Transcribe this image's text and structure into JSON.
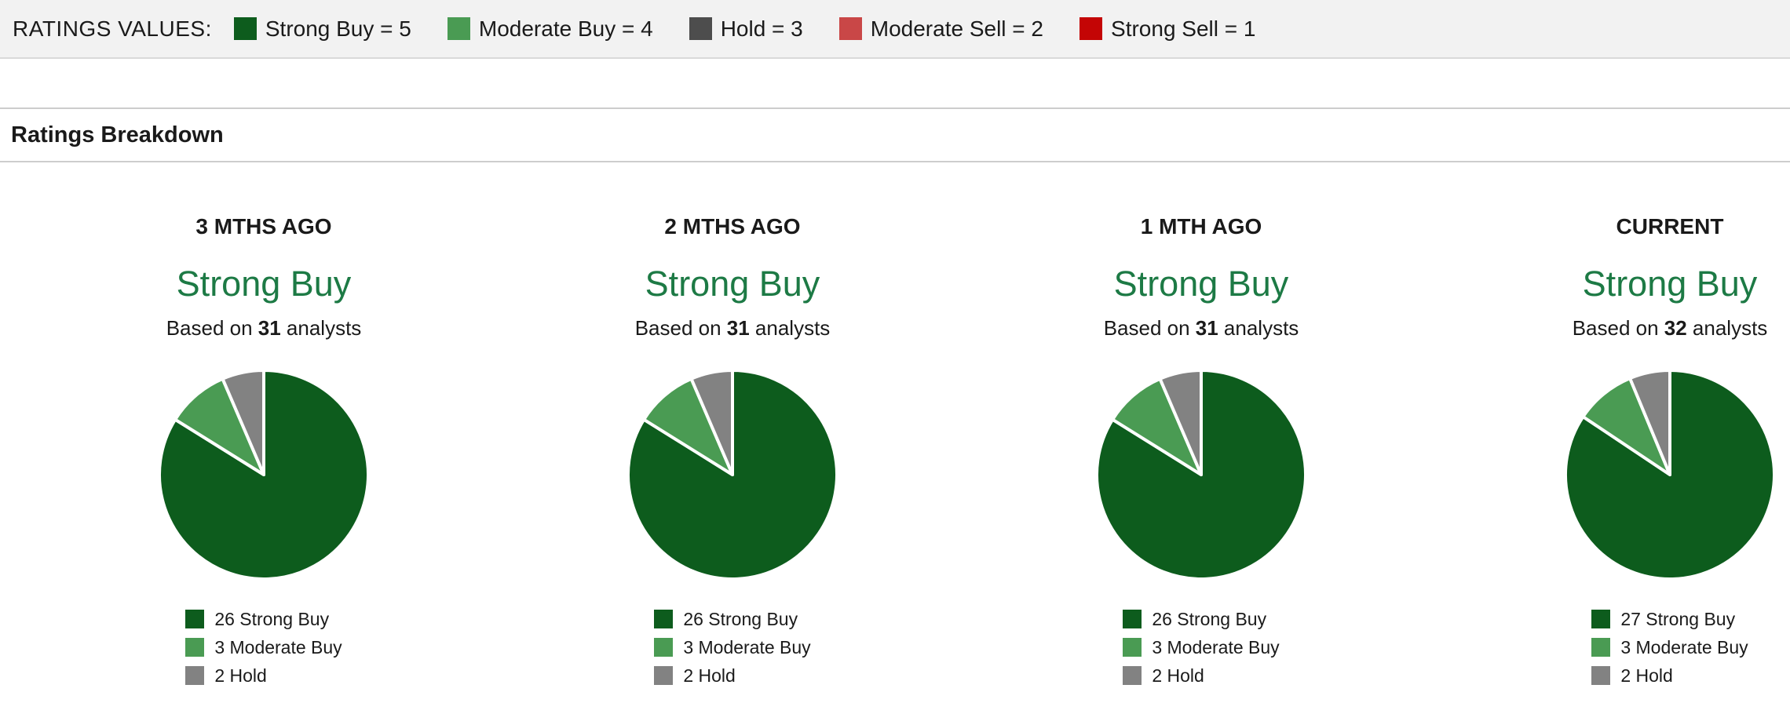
{
  "ratings_values_bar": {
    "label": "RATINGS VALUES:",
    "items": [
      {
        "name": "strong-buy",
        "text": "Strong Buy = 5",
        "color": "#0d5c1d"
      },
      {
        "name": "moderate-buy",
        "text": "Moderate Buy = 4",
        "color": "#4a9b53"
      },
      {
        "name": "hold",
        "text": "Hold = 3",
        "color": "#4d4d4d"
      },
      {
        "name": "moderate-sell",
        "text": "Moderate Sell = 2",
        "color": "#c94747"
      },
      {
        "name": "strong-sell",
        "text": "Strong Sell = 1",
        "color": "#c40505"
      }
    ]
  },
  "section": {
    "title": "Ratings Breakdown"
  },
  "strings": {
    "based_on_prefix": "Based on ",
    "based_on_suffix": " analysts"
  },
  "colors": {
    "strong_buy": "#0d5c1d",
    "moderate_buy": "#4a9b53",
    "hold_pie": "#828282",
    "consensus_text": "#1d7a45",
    "bar_background": "#f2f2f2",
    "divider": "#cdcdcd"
  },
  "chart_data": [
    {
      "type": "pie",
      "title": "3 MTHS AGO",
      "period": "3 MTHS AGO",
      "consensus": "Strong Buy",
      "analyst_count": "31",
      "categories": [
        "Strong Buy",
        "Moderate Buy",
        "Hold"
      ],
      "values": [
        26,
        3,
        2
      ],
      "colors": [
        "#0d5c1d",
        "#4a9b53",
        "#828282"
      ],
      "start_angle_deg": 0,
      "direction": "clockwise",
      "legend_position": "bottom",
      "legend": [
        {
          "text": "26 Strong Buy",
          "color": "#0d5c1d"
        },
        {
          "text": "3 Moderate Buy",
          "color": "#4a9b53"
        },
        {
          "text": "2 Hold",
          "color": "#828282"
        }
      ]
    },
    {
      "type": "pie",
      "title": "2 MTHS AGO",
      "period": "2 MTHS AGO",
      "consensus": "Strong Buy",
      "analyst_count": "31",
      "categories": [
        "Strong Buy",
        "Moderate Buy",
        "Hold"
      ],
      "values": [
        26,
        3,
        2
      ],
      "colors": [
        "#0d5c1d",
        "#4a9b53",
        "#828282"
      ],
      "start_angle_deg": 0,
      "direction": "clockwise",
      "legend_position": "bottom",
      "legend": [
        {
          "text": "26 Strong Buy",
          "color": "#0d5c1d"
        },
        {
          "text": "3 Moderate Buy",
          "color": "#4a9b53"
        },
        {
          "text": "2 Hold",
          "color": "#828282"
        }
      ]
    },
    {
      "type": "pie",
      "title": "1 MTH AGO",
      "period": "1 MTH AGO",
      "consensus": "Strong Buy",
      "analyst_count": "31",
      "categories": [
        "Strong Buy",
        "Moderate Buy",
        "Hold"
      ],
      "values": [
        26,
        3,
        2
      ],
      "colors": [
        "#0d5c1d",
        "#4a9b53",
        "#828282"
      ],
      "start_angle_deg": 0,
      "direction": "clockwise",
      "legend_position": "bottom",
      "legend": [
        {
          "text": "26 Strong Buy",
          "color": "#0d5c1d"
        },
        {
          "text": "3 Moderate Buy",
          "color": "#4a9b53"
        },
        {
          "text": "2 Hold",
          "color": "#828282"
        }
      ]
    },
    {
      "type": "pie",
      "title": "CURRENT",
      "period": "CURRENT",
      "consensus": "Strong Buy",
      "analyst_count": "32",
      "categories": [
        "Strong Buy",
        "Moderate Buy",
        "Hold"
      ],
      "values": [
        27,
        3,
        2
      ],
      "colors": [
        "#0d5c1d",
        "#4a9b53",
        "#828282"
      ],
      "start_angle_deg": 0,
      "direction": "clockwise",
      "legend_position": "bottom",
      "legend": [
        {
          "text": "27 Strong Buy",
          "color": "#0d5c1d"
        },
        {
          "text": "3 Moderate Buy",
          "color": "#4a9b53"
        },
        {
          "text": "2 Hold",
          "color": "#828282"
        }
      ]
    }
  ]
}
